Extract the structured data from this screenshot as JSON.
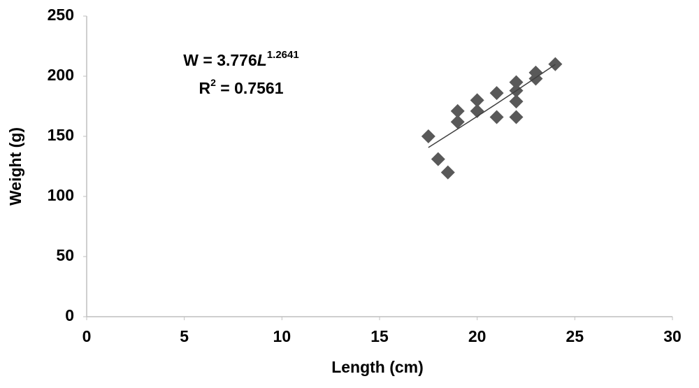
{
  "chart_data": {
    "type": "scatter",
    "x_label": "Length (cm)",
    "y_label": "Weight (g)",
    "x": [
      17.5,
      18,
      18.5,
      19,
      19,
      20,
      20,
      21,
      21,
      22,
      22,
      22,
      22,
      23,
      23,
      24
    ],
    "values": [
      150,
      131,
      120,
      171,
      162,
      180,
      171,
      186,
      166,
      195,
      188,
      179,
      166,
      203,
      198,
      210
    ],
    "color": "#595959",
    "xlim": [
      0,
      30
    ],
    "xticks": [
      0,
      5,
      10,
      15,
      20,
      25,
      30
    ],
    "ylim": [
      0,
      250
    ],
    "yticks": [
      0,
      50,
      100,
      150,
      200,
      250
    ],
    "grid": false,
    "trendline": {
      "type": "power",
      "lhs": "W = ",
      "coefficient": 3.776,
      "variable": "L",
      "exponent": 1.2641,
      "r_squared_symbol": "R",
      "r_squared_power": "2",
      "r_squared_equals": " = ",
      "r_squared": 0.7561,
      "color": "#404040"
    }
  }
}
